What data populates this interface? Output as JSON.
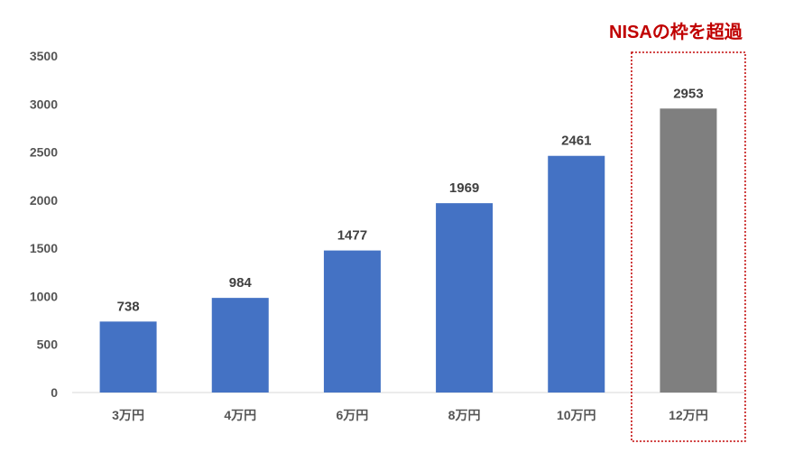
{
  "chart_data": {
    "type": "bar",
    "categories": [
      "3万円",
      "4万円",
      "6万円",
      "8万円",
      "10万円",
      "12万円"
    ],
    "values": [
      738,
      984,
      1477,
      1969,
      2461,
      2953
    ],
    "ylim": [
      0,
      3500
    ],
    "yticks": [
      0,
      500,
      1000,
      1500,
      2000,
      2500,
      3000,
      3500
    ],
    "grid": false,
    "data_labels": [
      "738",
      "984",
      "1477",
      "1969",
      "2461",
      "2953"
    ],
    "colors": {
      "bar": "#4472c4",
      "highlight_bar": "#7f7f7f",
      "annotation": "#c00000"
    },
    "highlight_index": 5,
    "annotation": {
      "text": "NISAの枠を超過",
      "target_category": "12万円"
    }
  }
}
